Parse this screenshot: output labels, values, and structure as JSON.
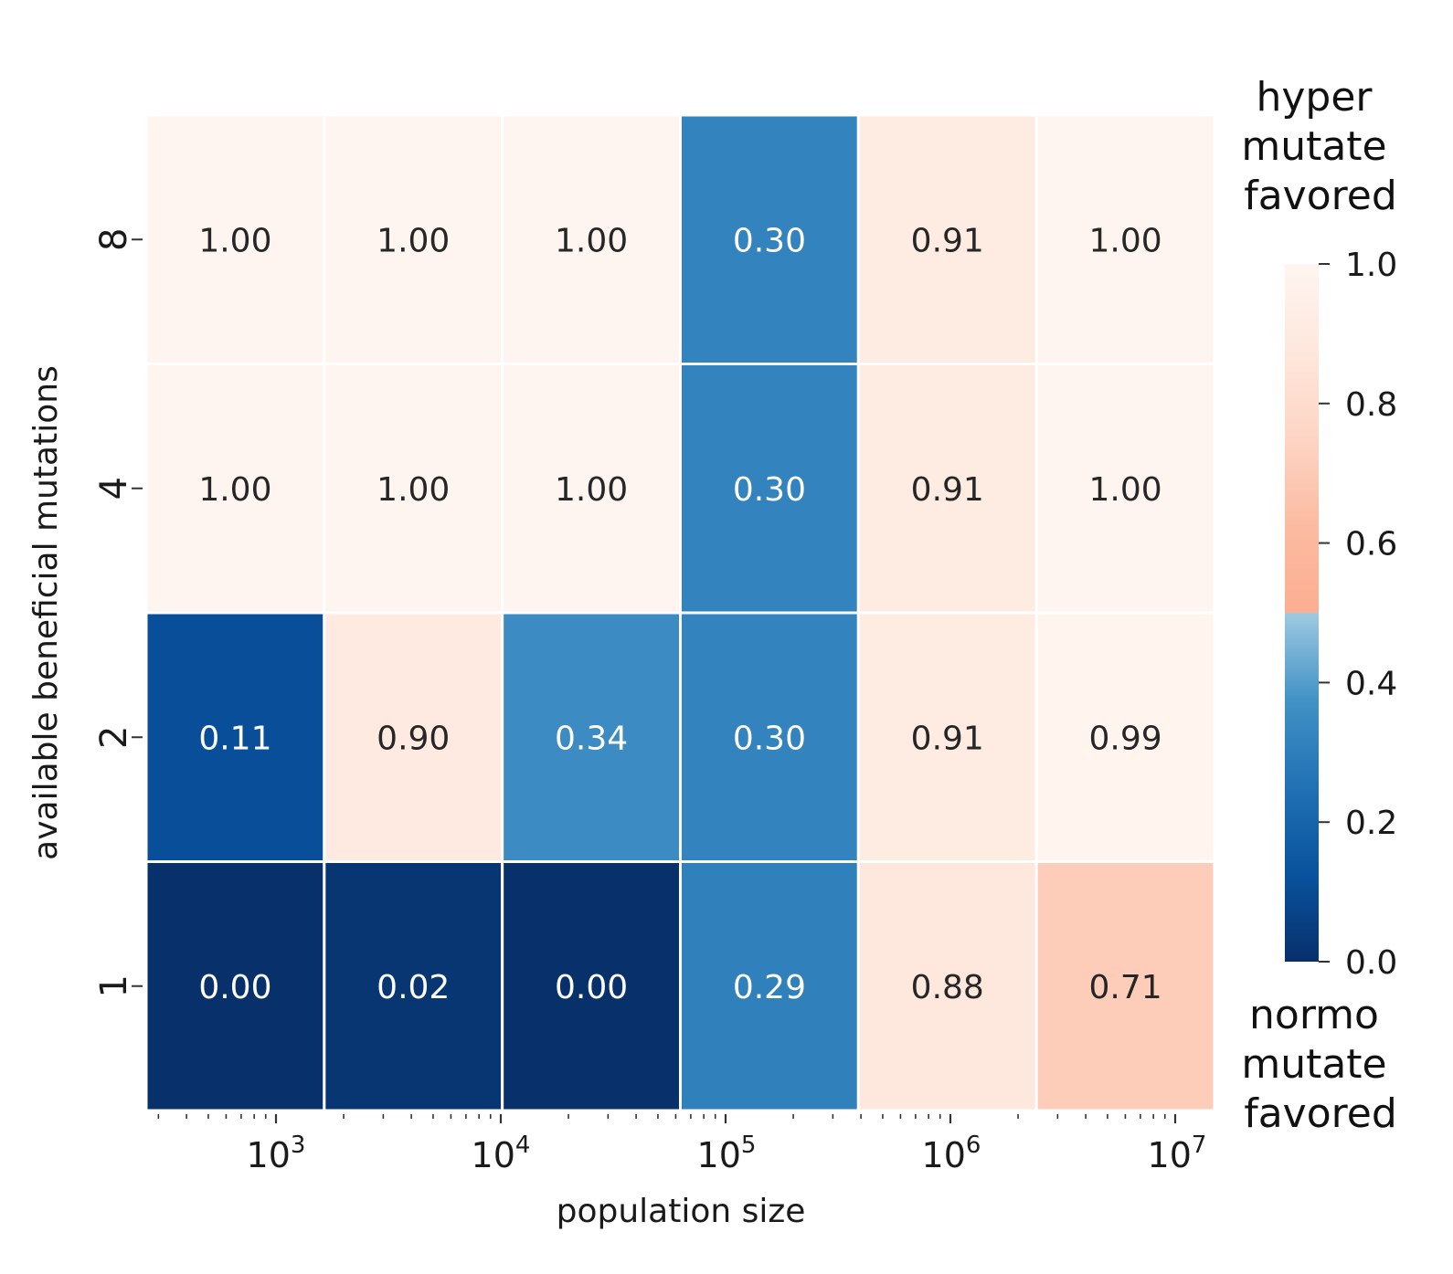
{
  "chart_data": {
    "type": "heatmap",
    "xlabel": "population size",
    "ylabel": "available beneficial mutations",
    "x_ticks": [
      {
        "base": "10",
        "exp": "3"
      },
      {
        "base": "10",
        "exp": "4"
      },
      {
        "base": "10",
        "exp": "5"
      },
      {
        "base": "10",
        "exp": "6"
      },
      {
        "base": "10",
        "exp": "7"
      }
    ],
    "x_scale": "log",
    "rows": [
      "8",
      "4",
      "2",
      "1"
    ],
    "values": [
      [
        1.0,
        1.0,
        1.0,
        0.3,
        0.91,
        1.0
      ],
      [
        1.0,
        1.0,
        1.0,
        0.3,
        0.91,
        1.0
      ],
      [
        0.11,
        0.9,
        0.34,
        0.3,
        0.91,
        0.99
      ],
      [
        0.0,
        0.02,
        0.0,
        0.29,
        0.88,
        0.71
      ]
    ],
    "value_labels": [
      [
        "1.00",
        "1.00",
        "1.00",
        "0.30",
        "0.91",
        "1.00"
      ],
      [
        "1.00",
        "1.00",
        "1.00",
        "0.30",
        "0.91",
        "1.00"
      ],
      [
        "0.11",
        "0.90",
        "0.34",
        "0.30",
        "0.91",
        "0.99"
      ],
      [
        "0.00",
        "0.02",
        "0.00",
        "0.29",
        "0.88",
        "0.71"
      ]
    ],
    "colorbar": {
      "ticks": [
        "0.0",
        "0.2",
        "0.4",
        "0.6",
        "0.8",
        "1.0"
      ],
      "range": [
        0,
        1
      ],
      "colormap": "diverging Blues (below 0.5) / Reds (above 0.5)",
      "top_label": [
        "hyper",
        "mutate",
        "favored"
      ],
      "bottom_label": [
        "normo",
        "mutate",
        "favored"
      ]
    }
  }
}
